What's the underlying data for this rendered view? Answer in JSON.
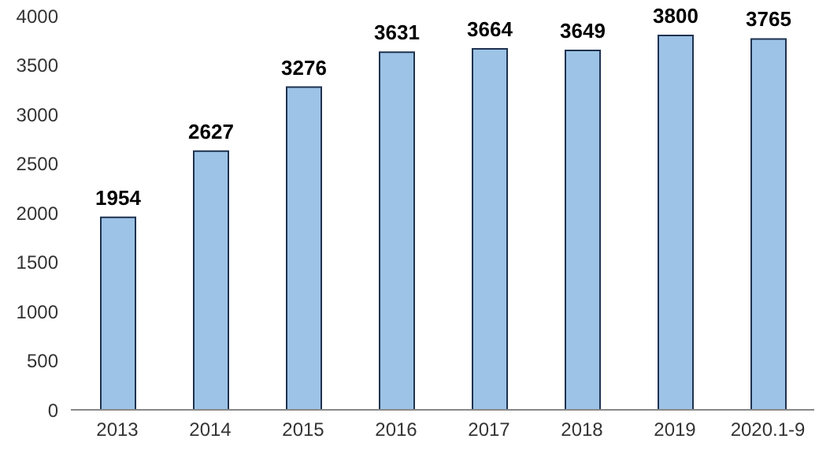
{
  "chart_data": {
    "type": "bar",
    "categories": [
      "2013",
      "2014",
      "2015",
      "2016",
      "2017",
      "2018",
      "2019",
      "2020.1-9"
    ],
    "values": [
      1954,
      2627,
      3276,
      3631,
      3664,
      3649,
      3800,
      3765
    ],
    "color": "#9dc3e6",
    "ylim": [
      0,
      4000
    ],
    "yticks": [
      0,
      500,
      1000,
      1500,
      2000,
      2500,
      3000,
      3500,
      4000
    ],
    "grid": false,
    "data_labels": true
  }
}
